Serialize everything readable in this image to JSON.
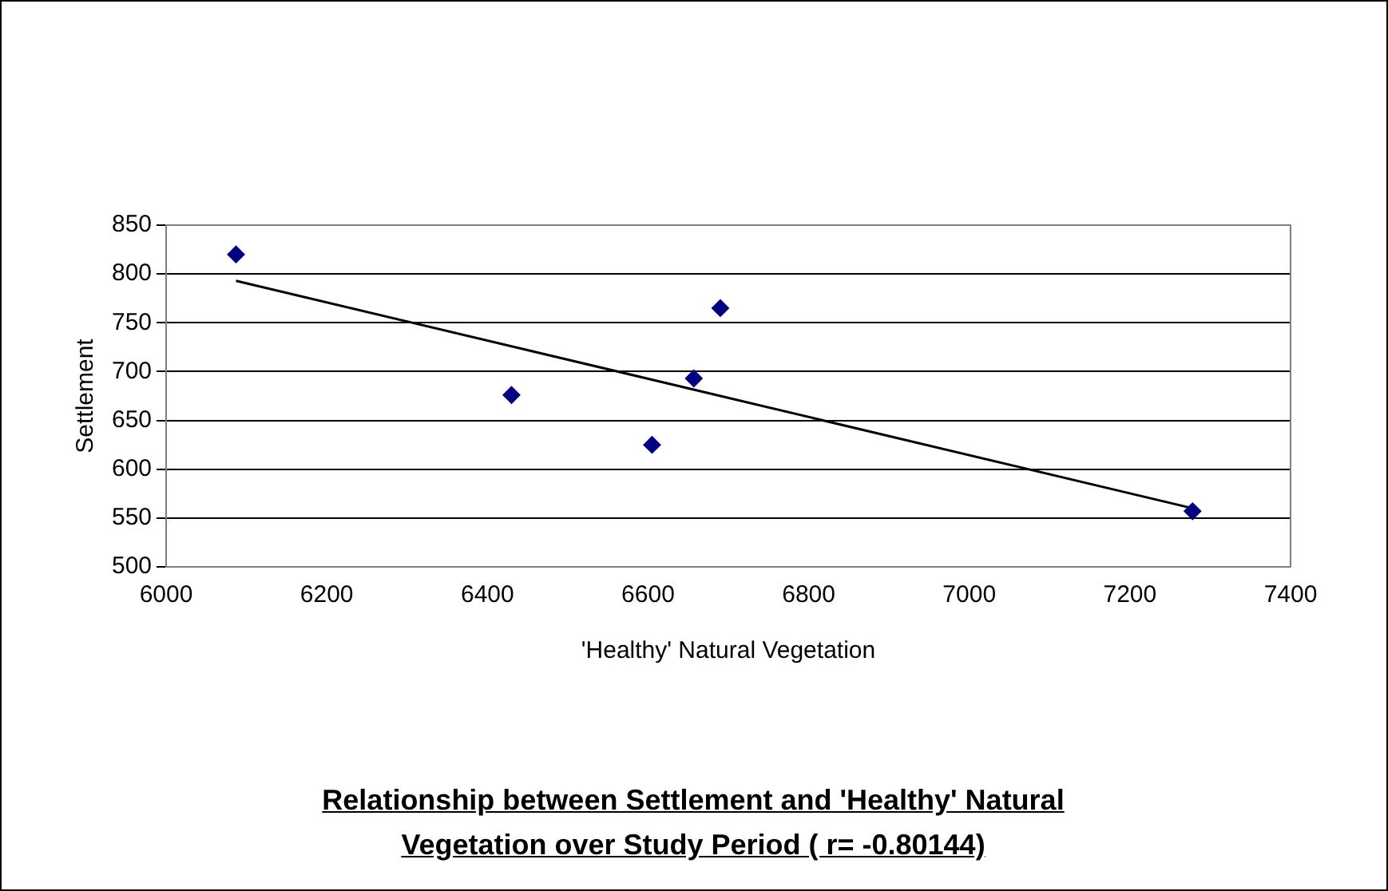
{
  "chart_data": {
    "type": "scatter",
    "title": "Relationship between Settlement and 'Healthy' Natural Vegetation over Study Period ( r= -0.80144)",
    "xlabel": "'Healthy' Natural Vegetation",
    "ylabel": "Settlement",
    "series": [
      {
        "type": "scatter",
        "color": "#000080",
        "marker": "diamond",
        "x": [
          6087,
          6430,
          6605,
          6657,
          6690,
          7278
        ],
        "values": [
          820,
          676,
          625,
          693,
          765,
          557
        ]
      },
      {
        "type": "line",
        "color": "#000000",
        "marker": "none",
        "x": [
          6087,
          7278
        ],
        "values": [
          793,
          560
        ]
      }
    ],
    "xlim": [
      6000,
      7400
    ],
    "xticks": [
      6000,
      6200,
      6400,
      6600,
      6800,
      7000,
      7200,
      7400
    ],
    "ylim": [
      500,
      850
    ],
    "yticks": [
      500,
      550,
      600,
      650,
      700,
      750,
      800,
      850
    ],
    "grid": "y",
    "legend": false
  }
}
